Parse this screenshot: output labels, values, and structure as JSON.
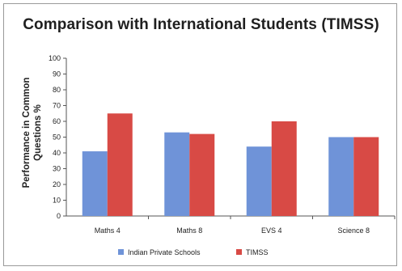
{
  "chart_data": {
    "type": "bar",
    "title": "Comparison with International Students (TIMSS)",
    "ylabel": "Performance in Common Questions %",
    "xlabel": "",
    "categories": [
      "Maths 4",
      "Maths 8",
      "EVS 4",
      "Science 8"
    ],
    "series": [
      {
        "name": "Indian Private Schools",
        "color": "#6f93d8",
        "values": [
          41,
          53,
          44,
          50
        ]
      },
      {
        "name": "TIMSS",
        "color": "#d84a45",
        "values": [
          65,
          52,
          60,
          50
        ]
      }
    ],
    "ylim": [
      0,
      100
    ],
    "yticks": [
      0,
      10,
      20,
      30,
      40,
      50,
      60,
      70,
      80,
      90,
      100
    ],
    "grid": false,
    "legend": "bottom"
  }
}
